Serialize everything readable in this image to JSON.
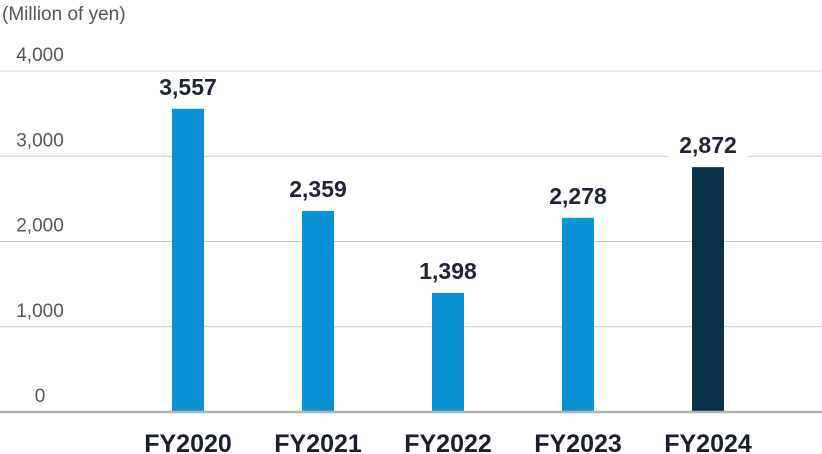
{
  "chart_data": {
    "type": "bar",
    "unit_label": "(Million of yen)",
    "categories": [
      "FY2020",
      "FY2021",
      "FY2022",
      "FY2023",
      "FY2024"
    ],
    "values": [
      3557,
      2359,
      1398,
      2278,
      2872
    ],
    "value_labels": [
      "3,557",
      "2,359",
      "1,398",
      "2,278",
      "2,872"
    ],
    "y_ticks": [
      0,
      1000,
      2000,
      3000,
      4000
    ],
    "y_tick_labels": [
      "0",
      "1,000",
      "2,000",
      "3,000",
      "4,000"
    ],
    "ylim": [
      0,
      4000
    ],
    "grid": true,
    "legend": "none",
    "bar_colors": [
      "#0a93d4",
      "#0a93d4",
      "#0a93d4",
      "#0a93d4",
      "#0b314b"
    ]
  }
}
